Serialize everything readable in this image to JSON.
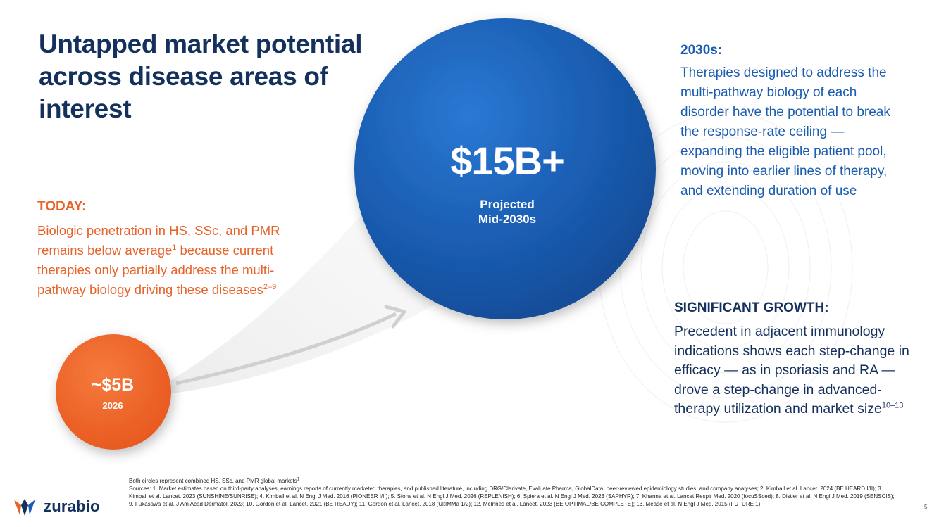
{
  "title": "Untapped market potential across disease areas of interest",
  "today": {
    "heading": "TODAY:",
    "body": "Biologic penetration in HS, SSc, and PMR remains below average",
    "sup1": "1",
    "body2": " because current therapies only partially address the multi-pathway biology driving these diseases",
    "sup2": "2–9"
  },
  "future": {
    "heading": "2030s:",
    "body": "Therapies designed to address the multi-pathway biology of each disorder have the potential to break the response-rate ceiling — expanding the eligible patient pool, moving into earlier lines of therapy, and extending duration of use"
  },
  "growth": {
    "heading": "SIGNIFICANT GROWTH:",
    "body": "Precedent in adjacent immunology indications shows each step-change in efficacy — as in psoriasis and RA — drove a step-change in advanced-therapy utilization and market size",
    "sup": "10–13"
  },
  "big_circle": {
    "value": "$15B+",
    "label_line1": "Projected",
    "label_line2": "Mid-2030s",
    "color": "#1a5cb0"
  },
  "small_circle": {
    "value": "~$5B",
    "label": "2026",
    "color": "#f26a2e"
  },
  "footnote": {
    "line1": "Both circles represent combined HS, SSc, and PMR global markets",
    "line1_sup": "1",
    "sources": "Sources: 1. Market estimates based on third-party analyses, earnings reports of currently marketed therapies, and published literature, including DRG/Clarivate, Evaluate Pharma, GlobalData, peer-reviewed epidemiology studies, and company analyses; 2. Kimball et al. Lancet. 2024 (BE HEARD I/II); 3. Kimball et al. Lancet. 2023 (SUNSHINE/SUNRISE); 4. Kimball et al. N Engl J Med. 2016 (PIONEER I/II); 5. Stone et al. N Engl J Med. 2026 (REPLENISH); 6. Spiera et al. N Engl J Med. 2023 (SAPHYR); 7. Khanna et al. Lancet Respir Med. 2020 (focuSSced); 8. Distler et al. N Engl J Med. 2019 (SENSCIS); 9. Fukasawa et al. J Am Acad Dermatol. 2023; 10. Gordon et al. Lancet. 2021 (BE READY); 11. Gordon et al. Lancet. 2018 (UltIMMa 1/2); 12. McInnes et al. Lancet. 2023 (BE OPTIMAL/BE COMPLETE); 13. Mease et al. N Engl J Med. 2015 (FUTURE 1)."
  },
  "logo": {
    "text": "zurabio",
    "icon": "zurabio-logo-icon"
  },
  "page_number": "5",
  "colors": {
    "navy": "#14305c",
    "orange": "#e8622a",
    "blue": "#1a5cb0"
  }
}
